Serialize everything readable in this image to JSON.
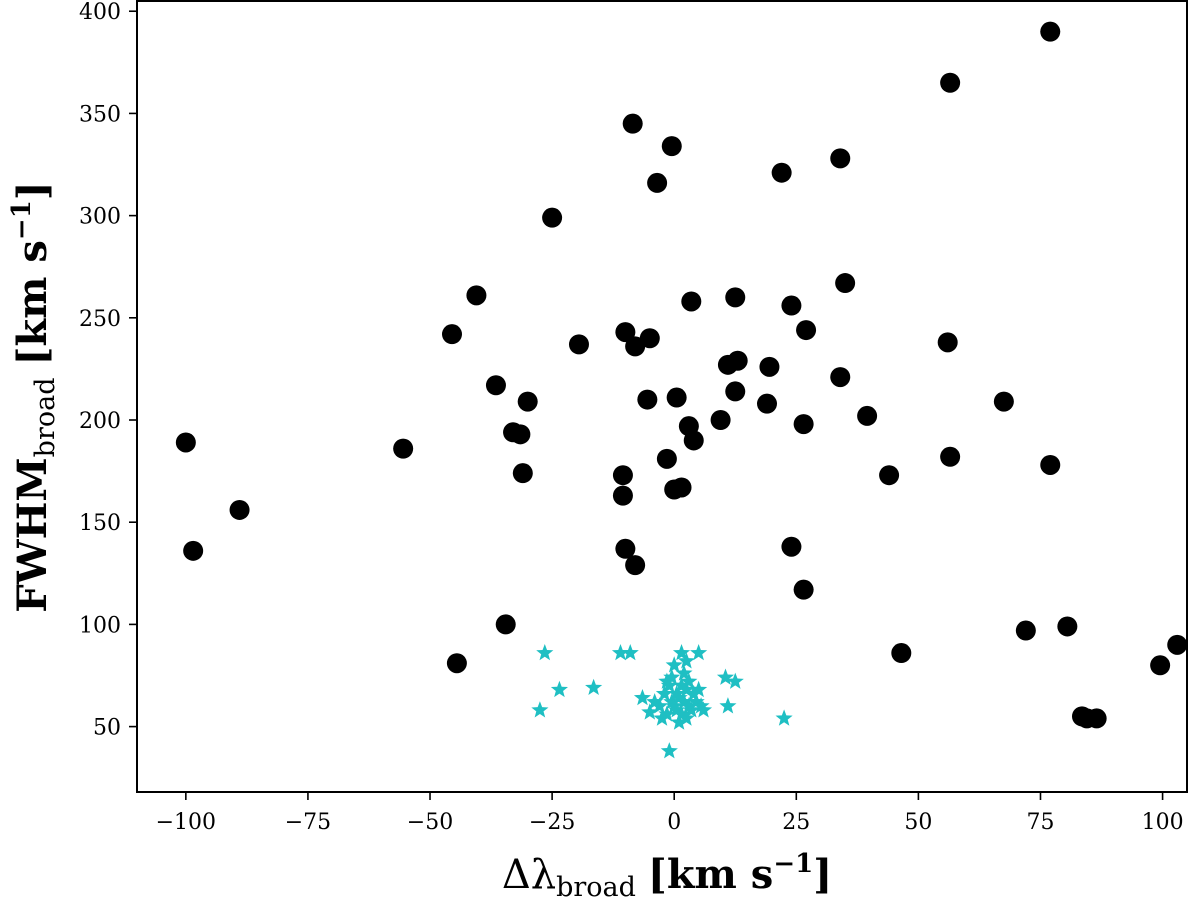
{
  "chart_data": {
    "type": "scatter",
    "xlabel": {
      "main": "Δλ",
      "sub": "broad",
      "unit": "[km s",
      "sup": "−1",
      "close": "]"
    },
    "ylabel": {
      "main": "FWHM",
      "sub": "broad",
      "unit": "[km s",
      "sup": "−1",
      "close": "]"
    },
    "xlim": [
      -110,
      105
    ],
    "ylim": [
      18,
      405
    ],
    "xticks": [
      -100,
      -75,
      -50,
      -25,
      0,
      25,
      50,
      75,
      100
    ],
    "xtick_labels": [
      "−100",
      "−75",
      "−50",
      "−25",
      "0",
      "25",
      "50",
      "75",
      "100"
    ],
    "yticks": [
      50,
      100,
      150,
      200,
      250,
      300,
      350,
      400
    ],
    "ytick_labels": [
      "50",
      "100",
      "150",
      "200",
      "250",
      "300",
      "350",
      "400"
    ],
    "grid": false,
    "series": [
      {
        "marker": "circle",
        "color": "#000000",
        "points": [
          [
            77,
            390
          ],
          [
            56.5,
            365
          ],
          [
            -8.5,
            345
          ],
          [
            -0.5,
            334
          ],
          [
            34,
            328
          ],
          [
            22,
            321
          ],
          [
            -3.5,
            316
          ],
          [
            -25,
            299
          ],
          [
            35,
            267
          ],
          [
            -40.5,
            261
          ],
          [
            12.5,
            260
          ],
          [
            3.5,
            258
          ],
          [
            24,
            256
          ],
          [
            27,
            244
          ],
          [
            -10,
            243
          ],
          [
            -45.5,
            242
          ],
          [
            -5,
            240
          ],
          [
            -8,
            236
          ],
          [
            56,
            238
          ],
          [
            -19.5,
            237
          ],
          [
            13,
            229
          ],
          [
            11,
            227
          ],
          [
            19.5,
            226
          ],
          [
            34,
            221
          ],
          [
            -36.5,
            217
          ],
          [
            12.5,
            214
          ],
          [
            -30,
            209
          ],
          [
            -5.5,
            210
          ],
          [
            0.5,
            211
          ],
          [
            19,
            208
          ],
          [
            67.5,
            209
          ],
          [
            39.5,
            202
          ],
          [
            9.5,
            200
          ],
          [
            26.5,
            198
          ],
          [
            3,
            197
          ],
          [
            -33,
            194
          ],
          [
            -31.5,
            193
          ],
          [
            4,
            190
          ],
          [
            -100,
            189
          ],
          [
            -55.5,
            186
          ],
          [
            56.5,
            182
          ],
          [
            -1.5,
            181
          ],
          [
            77,
            178
          ],
          [
            -10.5,
            173
          ],
          [
            -31,
            174
          ],
          [
            44,
            173
          ],
          [
            0,
            166
          ],
          [
            1.5,
            167
          ],
          [
            -10.5,
            163
          ],
          [
            -89,
            156
          ],
          [
            -10,
            137
          ],
          [
            24,
            138
          ],
          [
            -98.5,
            136
          ],
          [
            -8,
            129
          ],
          [
            26.5,
            117
          ],
          [
            -34.5,
            100
          ],
          [
            72,
            97
          ],
          [
            80.5,
            99
          ],
          [
            46.5,
            86
          ],
          [
            -44.5,
            81
          ],
          [
            103,
            90
          ],
          [
            99.5,
            80
          ],
          [
            83.5,
            55
          ],
          [
            84.5,
            54
          ],
          [
            86.5,
            54
          ]
        ]
      },
      {
        "marker": "star",
        "color": "#1fbfc3",
        "points": [
          [
            -26.5,
            86
          ],
          [
            -11,
            86
          ],
          [
            -9,
            86
          ],
          [
            1.5,
            86
          ],
          [
            5,
            86
          ],
          [
            2.5,
            82
          ],
          [
            -23.5,
            68
          ],
          [
            -16.5,
            69
          ],
          [
            10.5,
            74
          ],
          [
            12.5,
            72
          ],
          [
            -27.5,
            58
          ],
          [
            -1,
            38
          ],
          [
            22.5,
            54
          ],
          [
            11,
            60
          ],
          [
            -6.5,
            64
          ],
          [
            -5,
            57
          ],
          [
            -3,
            60
          ],
          [
            -2,
            66
          ],
          [
            -1.5,
            72
          ],
          [
            -1,
            70
          ],
          [
            -0.5,
            62
          ],
          [
            0,
            60
          ],
          [
            0.5,
            58
          ],
          [
            1,
            64
          ],
          [
            1.5,
            56
          ],
          [
            2,
            62
          ],
          [
            2.5,
            68
          ],
          [
            3,
            60
          ],
          [
            3.5,
            58
          ],
          [
            4,
            66
          ],
          [
            4.5,
            62
          ],
          [
            5,
            68
          ],
          [
            5.5,
            60
          ],
          [
            1,
            52
          ],
          [
            -0.5,
            74
          ],
          [
            2,
            76
          ],
          [
            0,
            80
          ],
          [
            -2.5,
            54
          ],
          [
            3,
            72
          ],
          [
            -4,
            62
          ],
          [
            6,
            58
          ],
          [
            -1.5,
            56
          ],
          [
            1.5,
            70
          ],
          [
            0.5,
            66
          ],
          [
            2.5,
            54
          ]
        ]
      }
    ]
  }
}
